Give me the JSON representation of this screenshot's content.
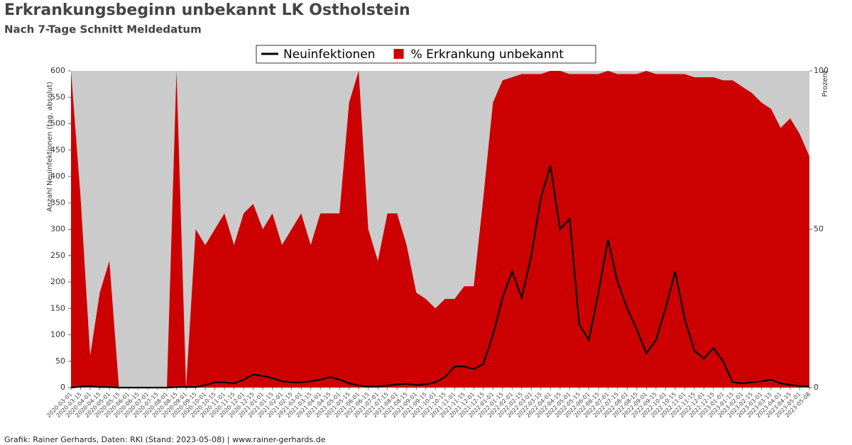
{
  "chart_data": {
    "type": "line-area",
    "title": "Erkrankungsbeginn unbekannt LK Ostholstein",
    "subtitle": "Nach 7-Tage Schnitt Meldedatum",
    "y_label": "Anzahl Neuinfektionen (tag. absolut)",
    "y2_label": "Prozent",
    "source": "Grafik: Rainer Gerhards, Daten: RKI (Stand: 2023-05-08) | www.rainer-gerhards.de",
    "categories": [
      "2020-03-01",
      "2020-03-15",
      "2020-04-01",
      "2020-04-15",
      "2020-05-01",
      "2020-05-15",
      "2020-06-01",
      "2020-06-15",
      "2020-07-01",
      "2020-07-15",
      "2020-08-01",
      "2020-08-15",
      "2020-09-01",
      "2020-09-15",
      "2020-10-01",
      "2020-10-15",
      "2020-11-01",
      "2020-11-15",
      "2020-12-01",
      "2020-12-15",
      "2021-01-01",
      "2021-01-15",
      "2021-02-01",
      "2021-02-15",
      "2021-03-01",
      "2021-03-15",
      "2021-04-01",
      "2021-04-15",
      "2021-05-01",
      "2021-05-15",
      "2021-06-01",
      "2021-06-15",
      "2021-07-01",
      "2021-07-15",
      "2021-08-01",
      "2021-08-15",
      "2021-09-01",
      "2021-09-15",
      "2021-10-01",
      "2021-10-15",
      "2021-11-01",
      "2021-11-15",
      "2021-12-01",
      "2021-12-15",
      "2022-01-01",
      "2022-01-15",
      "2022-02-01",
      "2022-02-15",
      "2022-03-01",
      "2022-03-15",
      "2022-04-01",
      "2022-04-15",
      "2022-05-01",
      "2022-05-15",
      "2022-06-01",
      "2022-06-15",
      "2022-07-01",
      "2022-07-15",
      "2022-08-01",
      "2022-08-15",
      "2022-09-01",
      "2022-09-15",
      "2022-10-01",
      "2022-10-15",
      "2022-11-01",
      "2022-11-15",
      "2022-12-01",
      "2022-12-15",
      "2023-01-01",
      "2023-01-15",
      "2023-02-01",
      "2023-02-15",
      "2023-03-01",
      "2023-03-15",
      "2023-04-01",
      "2023-04-15",
      "2023-05-01",
      "2023-05-08"
    ],
    "series": [
      {
        "name": "Neuinfektionen",
        "color": "#000000",
        "kind": "line",
        "values": [
          0,
          2,
          3,
          1,
          1,
          0,
          0,
          0,
          0,
          0,
          0,
          1,
          1,
          1,
          5,
          10,
          10,
          8,
          15,
          25,
          22,
          18,
          12,
          10,
          10,
          12,
          15,
          20,
          15,
          8,
          4,
          2,
          2,
          4,
          6,
          7,
          5,
          6,
          10,
          20,
          40,
          40,
          35,
          45,
          100,
          170,
          220,
          170,
          250,
          360,
          420,
          300,
          320,
          120,
          90,
          180,
          280,
          200,
          150,
          110,
          65,
          90,
          150,
          220,
          130,
          70,
          55,
          75,
          50,
          10,
          8,
          10,
          12,
          15,
          8,
          5,
          3,
          2
        ]
      },
      {
        "name": "% Erkrankung unbekannt",
        "color": "#cc0000",
        "kind": "area",
        "axis": "y2",
        "values": [
          100,
          60,
          10,
          30,
          40,
          0,
          0,
          0,
          0,
          0,
          0,
          100,
          0,
          50,
          45,
          50,
          55,
          45,
          55,
          58,
          50,
          55,
          45,
          50,
          55,
          45,
          55,
          55,
          55,
          90,
          100,
          50,
          40,
          55,
          55,
          45,
          30,
          28,
          25,
          28,
          28,
          32,
          32,
          60,
          90,
          97,
          98,
          99,
          99,
          99,
          100,
          100,
          99,
          99,
          99,
          99,
          100,
          99,
          99,
          99,
          100,
          99,
          99,
          99,
          99,
          98,
          98,
          98,
          97,
          97,
          95,
          93,
          90,
          88,
          82,
          85,
          80,
          73
        ]
      }
    ],
    "ylim": [
      0,
      600
    ],
    "yticks": [
      0,
      50,
      100,
      150,
      200,
      250,
      300,
      350,
      400,
      450,
      500,
      550,
      600
    ],
    "y2lim": [
      0,
      100
    ],
    "y2ticks": [
      0,
      50,
      100
    ],
    "legend": "top"
  }
}
